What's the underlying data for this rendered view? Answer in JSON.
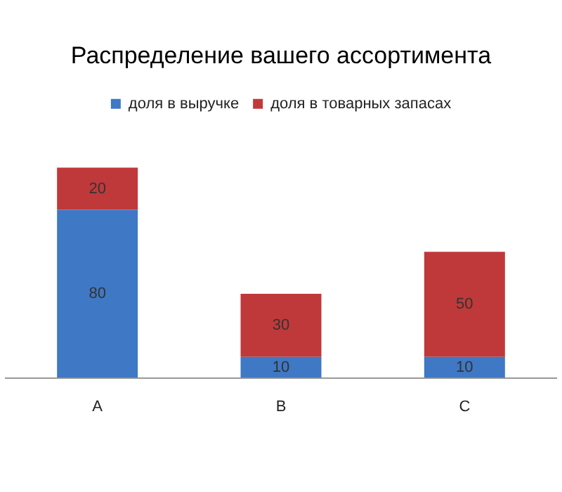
{
  "chart_data": {
    "type": "bar",
    "title": "Распределение вашего ассортимента",
    "categories": [
      "A",
      "B",
      "C"
    ],
    "stacked": true,
    "data_labels": true,
    "legend": "top",
    "grid": false,
    "tick_labels": "x",
    "series": [
      {
        "name": "доля в выручке",
        "color": "#3f78c4",
        "values": [
          80,
          10,
          10
        ]
      },
      {
        "name": "доля в товарных запасах",
        "color": "#c0393a",
        "values": [
          20,
          30,
          50
        ]
      }
    ]
  }
}
